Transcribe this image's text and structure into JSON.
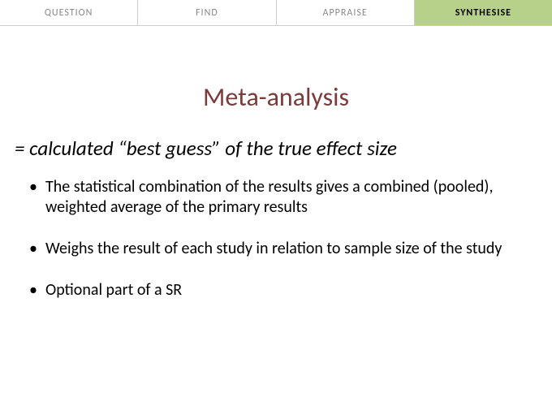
{
  "tabs": {
    "items": [
      {
        "label": "QUESTION",
        "active": false
      },
      {
        "label": "FIND",
        "active": false
      },
      {
        "label": "APPRAISE",
        "active": false
      },
      {
        "label": "SYNTHESISE",
        "active": true
      }
    ],
    "inactive_text_color": "#888888",
    "inactive_bg_color": "#ffffff",
    "active_text_color": "#000000",
    "active_bg_color": "#b8d18a",
    "border_color": "#cccccc"
  },
  "title": {
    "text": "Meta-analysis",
    "color": "#7a3b3b",
    "fontsize": 32
  },
  "subtitle": {
    "text": "= calculated “best guess” of the true effect size",
    "fontsize": 25
  },
  "bullets": [
    "The statistical combination of the results gives a combined (pooled), weighted average of the primary results",
    "Weighs the result of each study in relation to sample size of the study",
    "Optional part of a SR"
  ],
  "colors": {
    "background": "#ffffff",
    "body_text": "#000000"
  }
}
